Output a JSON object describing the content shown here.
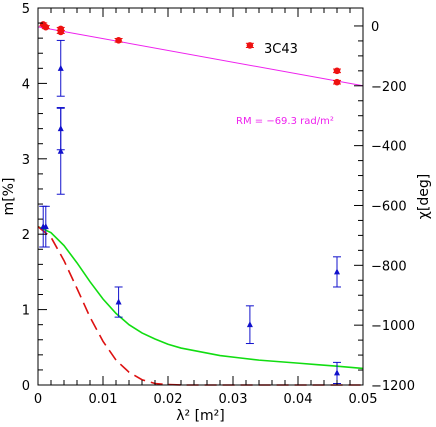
{
  "chart_data": {
    "type": "scatter",
    "source_label": "3C43",
    "annotation": "RM = −69.3 rad/m²",
    "xlabel": "λ² [m²]",
    "ylabel_left": "m[%]",
    "ylabel_right": "χ[deg]",
    "xlim": [
      0,
      0.05
    ],
    "ylim_left": [
      0,
      5
    ],
    "ylim_right": [
      -1200,
      60
    ],
    "x_ticks": [
      "0",
      "0.01",
      "0.02",
      "0.03",
      "0.04",
      "0.05"
    ],
    "y_left_ticks": [
      "0",
      "1",
      "2",
      "3",
      "4",
      "5"
    ],
    "y_right_ticks": [
      "0",
      "−200",
      "−400",
      "−600",
      "−800",
      "−1000",
      "−1200"
    ],
    "colors": {
      "angle_points": "#ee1111",
      "rm_fit": "#ee22ee",
      "fraction_points": "#1111cc",
      "green_model": "#11dd11",
      "red_model": "#dd1111"
    },
    "series": [
      {
        "axis": "right",
        "marker": "circle",
        "color": "#ee1111",
        "points": [
          {
            "x": 0.0008,
            "y": 5,
            "err": 5
          },
          {
            "x": 0.0012,
            "y": -4,
            "err": 5
          },
          {
            "x": 0.0035,
            "y": -10,
            "err": 5
          },
          {
            "x": 0.0035,
            "y": -20,
            "err": 5
          },
          {
            "x": 0.0124,
            "y": -48,
            "err": 6
          },
          {
            "x": 0.0326,
            "y": -65,
            "err": 7
          },
          {
            "x": 0.046,
            "y": -150,
            "err": 6
          },
          {
            "x": 0.046,
            "y": -188,
            "err": 6
          }
        ]
      },
      {
        "axis": "left",
        "marker": "triangle",
        "color": "#1111cc",
        "points": [
          {
            "x": 0.0008,
            "y": 2.1,
            "err": 0.27
          },
          {
            "x": 0.0012,
            "y": 2.1,
            "err": 0.27
          },
          {
            "x": 0.0035,
            "y": 4.2,
            "err": 0.37
          },
          {
            "x": 0.0035,
            "y": 3.4,
            "err": 0.28
          },
          {
            "x": 0.0035,
            "y": 3.1,
            "err": 0.57
          },
          {
            "x": 0.0124,
            "y": 1.1,
            "err": 0.2
          },
          {
            "x": 0.0326,
            "y": 0.8,
            "err": 0.25
          },
          {
            "x": 0.046,
            "y": 1.5,
            "err": 0.2
          },
          {
            "x": 0.046,
            "y": 0.16,
            "err": 0.14
          }
        ]
      }
    ],
    "lines": [
      {
        "axis": "right",
        "style": "solid",
        "color": "#ee22ee",
        "x": [
          0,
          0.05
        ],
        "y": [
          -3,
          -200
        ]
      },
      {
        "axis": "left",
        "style": "solid",
        "color": "#11dd11",
        "x": [
          0,
          0.002,
          0.004,
          0.006,
          0.008,
          0.01,
          0.012,
          0.014,
          0.016,
          0.018,
          0.02,
          0.022,
          0.025,
          0.028,
          0.031,
          0.034,
          0.037,
          0.04,
          0.043,
          0.046,
          0.05
        ],
        "y": [
          2.1,
          2.02,
          1.85,
          1.62,
          1.37,
          1.14,
          0.95,
          0.8,
          0.69,
          0.61,
          0.54,
          0.49,
          0.44,
          0.39,
          0.36,
          0.33,
          0.31,
          0.29,
          0.27,
          0.25,
          0.22
        ]
      },
      {
        "axis": "left",
        "style": "dashed",
        "color": "#dd1111",
        "x": [
          0,
          0.002,
          0.004,
          0.006,
          0.008,
          0.01,
          0.012,
          0.014,
          0.016,
          0.018,
          0.02,
          0.022,
          0.025,
          0.03,
          0.04,
          0.05
        ],
        "y": [
          2.1,
          1.96,
          1.65,
          1.28,
          0.9,
          0.58,
          0.33,
          0.17,
          0.07,
          0.02,
          0.006,
          0.0,
          0.0,
          0.0,
          0.0,
          0.0
        ]
      }
    ]
  }
}
